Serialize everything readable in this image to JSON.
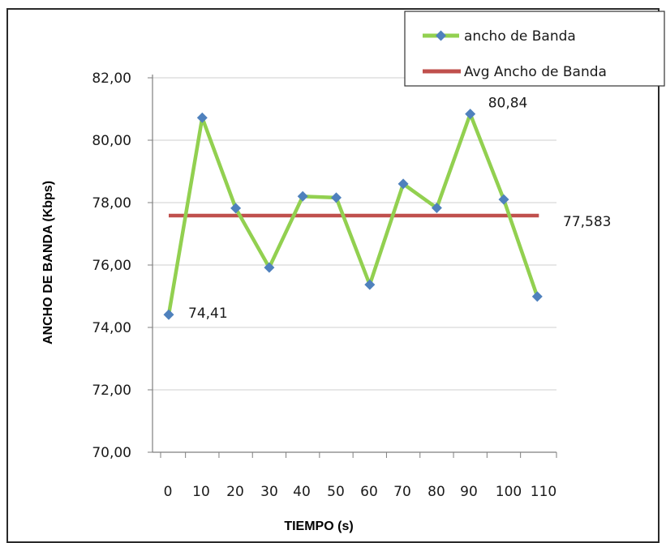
{
  "chart_data": {
    "type": "line",
    "xlabel": "TIEMPO (s)",
    "ylabel": "ANCHO DE BANDA (Kbps)",
    "ylim": [
      70,
      82
    ],
    "y_ticks": [
      "70,00",
      "72,00",
      "74,00",
      "76,00",
      "78,00",
      "80,00",
      "82,00"
    ],
    "x_ticks": [
      "0",
      "10",
      "20",
      "30",
      "40",
      "50",
      "60",
      "70",
      "80",
      "90",
      "100",
      "110"
    ],
    "grid": true,
    "legend_position": "top-right",
    "series": [
      {
        "name": "ancho de Banda",
        "color": "#92d050",
        "marker_color": "#4f81bd",
        "values": [
          74.41,
          80.72,
          77.82,
          75.92,
          78.2,
          78.16,
          75.37,
          78.6,
          77.83,
          80.84,
          78.1,
          74.99
        ]
      },
      {
        "name": "Avg Ancho de Banda",
        "color": "#c0504d",
        "value": 77.583
      }
    ],
    "annotations": [
      {
        "text": "74,41",
        "point": 0
      },
      {
        "text": "80,84",
        "point": 9
      },
      {
        "text": "77,583",
        "target": "avg"
      }
    ]
  }
}
